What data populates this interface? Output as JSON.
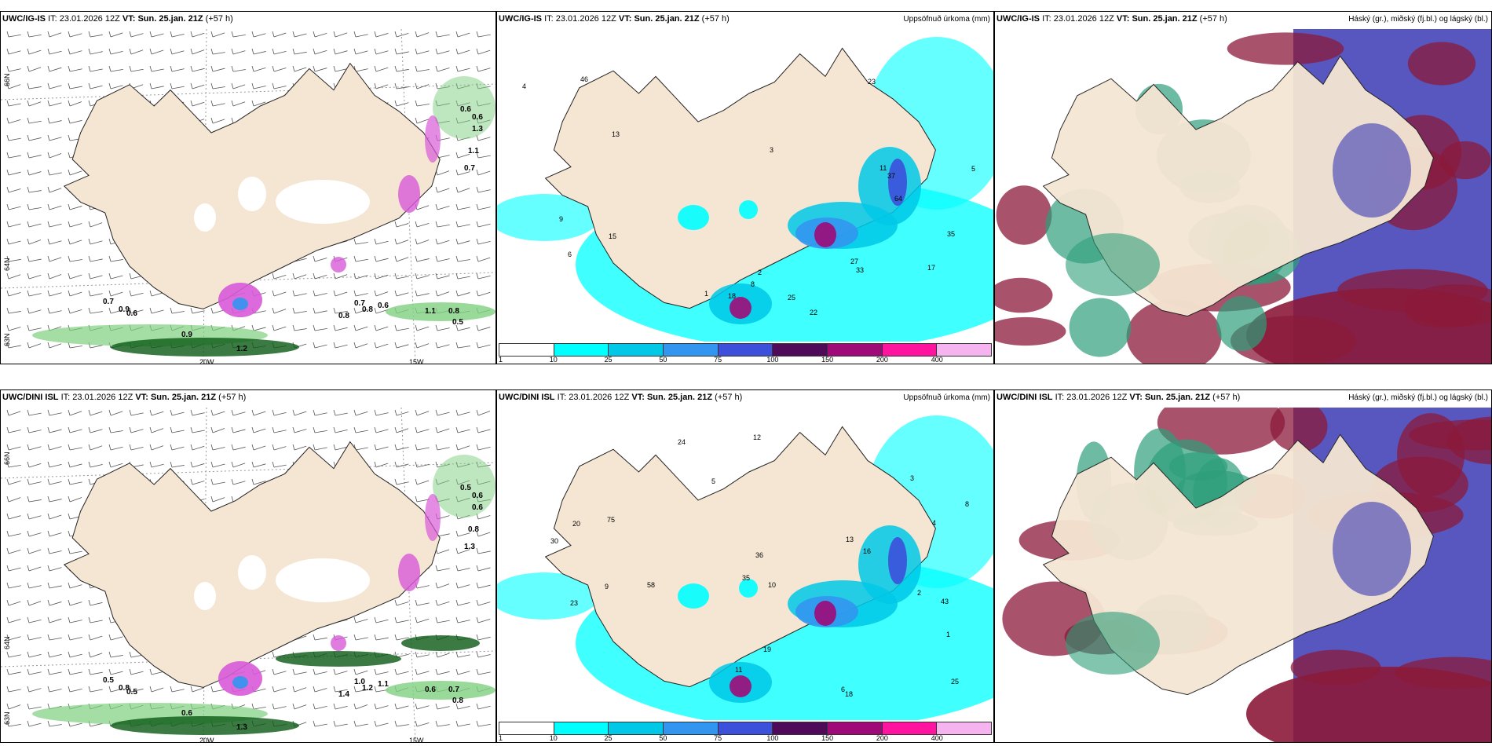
{
  "colors": {
    "land": "#f5e6d3",
    "sea": "#ffffff",
    "coast": "#222222",
    "grid": "#999999",
    "precip": [
      "#ffffff",
      "#00ffff",
      "#00c8e6",
      "#3296f0",
      "#3c50dc",
      "#500a5a",
      "#a00a78",
      "#ff14a0",
      "#f5b4f0"
    ],
    "high_cloud": "#2e9e7a",
    "mid_cloud": "#8b1a3a",
    "low_cloud": "#3a3ab4",
    "wind_green": "#7fd07f",
    "wind_dark": "#0a5a14"
  },
  "legend": {
    "values": [
      "1",
      "10",
      "25",
      "50",
      "75",
      "100",
      "150",
      "200",
      "400"
    ]
  },
  "rows": [
    {
      "model": "UWC/IG-IS",
      "it_label": "IT:",
      "it_value": "23.01.2026 12Z",
      "vt_label": "VT:",
      "vt_value": "Sun. 25.jan. 21Z",
      "lead": "(+57 h)",
      "wind_labels": [
        "0.7",
        "0.9",
        "0.6",
        "0.6",
        "0.6",
        "1.3",
        "1.1",
        "0.7",
        "0.7",
        "0.8",
        "0.6",
        "0.8",
        "1.1",
        "0.8",
        "0.5",
        "0.9",
        "1.2"
      ],
      "precip_labels": [
        "1",
        "2",
        "3",
        "4",
        "5",
        "6",
        "8",
        "9",
        "11",
        "13",
        "15",
        "17",
        "18",
        "22",
        "23",
        "25",
        "27",
        "33",
        "35",
        "37",
        "46",
        "64"
      ],
      "axis": {
        "lon_a": "20W",
        "lon_b": "15W",
        "lat_a": "66N",
        "lat_b": "64N",
        "lat_c": "63N"
      }
    },
    {
      "model": "UWC/DINI ISL",
      "it_label": "IT:",
      "it_value": "23.01.2026 12Z",
      "vt_label": "VT:",
      "vt_value": "Sun. 25.jan. 21Z",
      "lead": "(+57 h)",
      "wind_labels": [
        "0.5",
        "0.8",
        "0.5",
        "0.5",
        "0.6",
        "0.6",
        "0.8",
        "1.3",
        "1.0",
        "1.2",
        "1.1",
        "1.4",
        "0.6",
        "0.7",
        "0.8",
        "0.6",
        "1.3"
      ],
      "precip_labels": [
        "1",
        "2",
        "3",
        "4",
        "5",
        "6",
        "8",
        "9",
        "10",
        "11",
        "12",
        "13",
        "16",
        "18",
        "19",
        "20",
        "23",
        "24",
        "25",
        "30",
        "35",
        "36",
        "43",
        "58",
        "75"
      ],
      "axis": {
        "lon_a": "20W",
        "lon_b": "15W",
        "lat_a": "66N",
        "lat_b": "64N",
        "lat_c": "63N"
      }
    }
  ],
  "panels": {
    "precip_title": "Uppsöfnuð úrkoma (mm)",
    "cloud_title": "Háský (gr.), miðský (fj.bl.) og lágský (bl.)"
  }
}
